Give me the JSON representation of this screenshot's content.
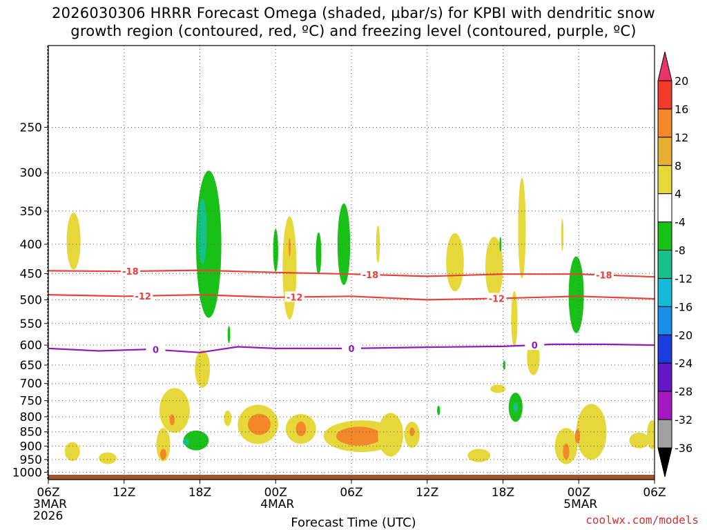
{
  "title_line1": "2026030306 HRRR Forecast Omega (shaded, µbar/s) for KPBI with dendritic snow",
  "title_line2": "growth region (contoured, red, ºC) and freezing level (contoured, purple, ºC)",
  "xlabel": "Forecast Time (UTC)",
  "site": "coolwx.com/models",
  "chart_data": {
    "type": "area",
    "x_range_hours": [
      0,
      48
    ],
    "y_range_hpa": [
      1030,
      180
    ],
    "y_ticks": [
      250,
      300,
      350,
      400,
      450,
      500,
      550,
      600,
      650,
      700,
      750,
      800,
      850,
      900,
      950,
      1000
    ],
    "x_ticks": [
      {
        "h": 0,
        "lines": [
          "06Z",
          "3MAR",
          "2026"
        ]
      },
      {
        "h": 6,
        "lines": [
          "12Z"
        ]
      },
      {
        "h": 12,
        "lines": [
          "18Z"
        ]
      },
      {
        "h": 18,
        "lines": [
          "00Z",
          "4MAR"
        ]
      },
      {
        "h": 24,
        "lines": [
          "06Z"
        ]
      },
      {
        "h": 30,
        "lines": [
          "12Z"
        ]
      },
      {
        "h": 36,
        "lines": [
          "18Z"
        ]
      },
      {
        "h": 42,
        "lines": [
          "00Z",
          "5MAR"
        ]
      },
      {
        "h": 48,
        "lines": [
          "06Z"
        ]
      }
    ],
    "colorbar": {
      "labels": [
        "20",
        "16",
        "12",
        "8",
        "4",
        "-4",
        "-8",
        "-12",
        "-16",
        "-20",
        "-24",
        "-28",
        "-32",
        "-36"
      ],
      "colors": [
        "#e8336b",
        "#f23a2a",
        "#f2882a",
        "#e8b032",
        "#e6d83a",
        "#ffffff",
        "#18c018",
        "#18c08a",
        "#18b8d8",
        "#1a8ee8",
        "#1c3ce0",
        "#6418c8",
        "#a418c0",
        "#a0a0a0",
        "#000000"
      ]
    },
    "contours": [
      {
        "name": "dendritic -18C",
        "color": "#e8403a",
        "label": "-18",
        "points": [
          [
            0,
            445
          ],
          [
            6,
            446
          ],
          [
            12,
            444
          ],
          [
            18,
            448
          ],
          [
            24,
            451
          ],
          [
            30,
            455
          ],
          [
            36,
            451
          ],
          [
            42,
            451
          ],
          [
            48,
            456
          ]
        ],
        "label_hours": [
          6.5,
          25.5,
          44
        ]
      },
      {
        "name": "dendritic -12C",
        "color": "#e8403a",
        "label": "-12",
        "points": [
          [
            0,
            490
          ],
          [
            6,
            493
          ],
          [
            12,
            490
          ],
          [
            18,
            495
          ],
          [
            24,
            493
          ],
          [
            30,
            500
          ],
          [
            36,
            497
          ],
          [
            42,
            493
          ],
          [
            48,
            498
          ]
        ],
        "label_hours": [
          7.5,
          19.5,
          35.5
        ]
      },
      {
        "name": "freezing level 0C",
        "color": "#9018c0",
        "label": "0",
        "points": [
          [
            0,
            608
          ],
          [
            4,
            614
          ],
          [
            8,
            610
          ],
          [
            12,
            618
          ],
          [
            15,
            604
          ],
          [
            18,
            608
          ],
          [
            24,
            608
          ],
          [
            30,
            605
          ],
          [
            36,
            603
          ],
          [
            40,
            598
          ],
          [
            44,
            598
          ],
          [
            48,
            600
          ]
        ],
        "label_hours": [
          8.5,
          24,
          38.5
        ]
      }
    ],
    "omega_regions": [
      {
        "color": "#e6d83a",
        "center": [
          2.0,
          395
        ],
        "radii": [
          0.55,
          45
        ]
      },
      {
        "color": "#e6d83a",
        "center": [
          1.9,
          920
        ],
        "radii": [
          0.6,
          35
        ]
      },
      {
        "color": "#e6d83a",
        "center": [
          4.7,
          945
        ],
        "radii": [
          0.7,
          22
        ]
      },
      {
        "color": "#e6d83a",
        "center": [
          9.1,
          895
        ],
        "radii": [
          0.55,
          60
        ]
      },
      {
        "color": "#f2882a",
        "center": [
          9.1,
          930
        ],
        "radii": [
          0.25,
          20
        ]
      },
      {
        "color": "#e6d83a",
        "center": [
          10.0,
          780
        ],
        "radii": [
          1.2,
          70
        ]
      },
      {
        "color": "#e6d83a",
        "center": [
          12.2,
          660
        ],
        "radii": [
          0.6,
          50
        ]
      },
      {
        "color": "#f2882a",
        "center": [
          9.8,
          810
        ],
        "radii": [
          0.2,
          18
        ]
      },
      {
        "color": "#18c018",
        "center": [
          12.7,
          400
        ],
        "radii": [
          1.0,
          115
        ]
      },
      {
        "color": "#18c08a",
        "center": [
          12.2,
          380
        ],
        "radii": [
          0.35,
          50
        ]
      },
      {
        "color": "#18c018",
        "center": [
          11.7,
          880
        ],
        "radii": [
          1.0,
          35
        ]
      },
      {
        "color": "#18c08a",
        "center": [
          10.9,
          885
        ],
        "radii": [
          0.25,
          12
        ]
      },
      {
        "color": "#e6d83a",
        "center": [
          14.2,
          805
        ],
        "radii": [
          0.3,
          25
        ]
      },
      {
        "color": "#e6d83a",
        "center": [
          16.6,
          825
        ],
        "radii": [
          1.6,
          65
        ]
      },
      {
        "color": "#f2882a",
        "center": [
          16.7,
          825
        ],
        "radii": [
          0.9,
          35
        ]
      },
      {
        "color": "#e6d83a",
        "center": [
          20.0,
          840
        ],
        "radii": [
          1.2,
          50
        ]
      },
      {
        "color": "#f2882a",
        "center": [
          20.0,
          840
        ],
        "radii": [
          0.4,
          25
        ]
      },
      {
        "color": "#e6d83a",
        "center": [
          19.1,
          440
        ],
        "radii": [
          0.55,
          90
        ]
      },
      {
        "color": "#f2882a",
        "center": [
          19.1,
          405
        ],
        "radii": [
          0.08,
          15
        ]
      },
      {
        "color": "#18c018",
        "center": [
          18.0,
          410
        ],
        "radii": [
          0.2,
          35
        ]
      },
      {
        "color": "#18c018",
        "center": [
          14.3,
          575
        ],
        "radii": [
          0.1,
          20
        ]
      },
      {
        "color": "#18c018",
        "center": [
          21.4,
          415
        ],
        "radii": [
          0.22,
          35
        ]
      },
      {
        "color": "#18c018",
        "center": [
          23.4,
          400
        ],
        "radii": [
          0.5,
          65
        ]
      },
      {
        "color": "#e6d83a",
        "center": [
          24.8,
          865
        ],
        "radii": [
          3.0,
          55
        ]
      },
      {
        "color": "#f2882a",
        "center": [
          24.6,
          865
        ],
        "radii": [
          1.8,
          33
        ]
      },
      {
        "color": "#f2882a",
        "center": [
          27.2,
          880
        ],
        "radii": [
          0.5,
          38
        ]
      },
      {
        "color": "#f23a2a",
        "center": [
          27.2,
          895
        ],
        "radii": [
          0.3,
          20
        ]
      },
      {
        "color": "#e6d83a",
        "center": [
          27.1,
          860
        ],
        "radii": [
          1.0,
          75
        ]
      },
      {
        "color": "#e6d83a",
        "center": [
          28.8,
          860
        ],
        "radii": [
          0.6,
          45
        ]
      },
      {
        "color": "#f2882a",
        "center": [
          28.8,
          850
        ],
        "radii": [
          0.2,
          15
        ]
      },
      {
        "color": "#e6d83a",
        "center": [
          26.1,
          400
        ],
        "radii": [
          0.15,
          30
        ]
      },
      {
        "color": "#18c018",
        "center": [
          30.9,
          780
        ],
        "radii": [
          0.12,
          15
        ]
      },
      {
        "color": "#e6d83a",
        "center": [
          32.2,
          430
        ],
        "radii": [
          0.7,
          50
        ]
      },
      {
        "color": "#e6d83a",
        "center": [
          34.1,
          935
        ],
        "radii": [
          0.9,
          25
        ]
      },
      {
        "color": "#e6d83a",
        "center": [
          35.3,
          440
        ],
        "radii": [
          0.7,
          55
        ]
      },
      {
        "color": "#e6d83a",
        "center": [
          35.6,
          715
        ],
        "radii": [
          0.6,
          12
        ]
      },
      {
        "color": "#18c018",
        "center": [
          36.1,
          650
        ],
        "radii": [
          0.1,
          12
        ]
      },
      {
        "color": "#18c018",
        "center": [
          35.8,
          400
        ],
        "radii": [
          0.08,
          12
        ]
      },
      {
        "color": "#e6d83a",
        "center": [
          36.9,
          540
        ],
        "radii": [
          0.25,
          60
        ]
      },
      {
        "color": "#18c018",
        "center": [
          37.0,
          770
        ],
        "radii": [
          0.55,
          45
        ]
      },
      {
        "color": "#18c08a",
        "center": [
          37.0,
          770
        ],
        "radii": [
          0.2,
          15
        ]
      },
      {
        "color": "#e6d83a",
        "center": [
          37.5,
          375
        ],
        "radii": [
          0.3,
          75
        ]
      },
      {
        "color": "#e6d83a",
        "center": [
          38.4,
          630
        ],
        "radii": [
          0.5,
          45
        ]
      },
      {
        "color": "#e6d83a",
        "center": [
          40.7,
          385
        ],
        "radii": [
          0.1,
          25
        ]
      },
      {
        "color": "#e6d83a",
        "center": [
          41.0,
          900
        ],
        "radii": [
          0.9,
          65
        ]
      },
      {
        "color": "#f2882a",
        "center": [
          41.0,
          920
        ],
        "radii": [
          0.25,
          30
        ]
      },
      {
        "color": "#e6d83a",
        "center": [
          43.0,
          850
        ],
        "radii": [
          1.2,
          95
        ]
      },
      {
        "color": "#f2882a",
        "center": [
          41.9,
          865
        ],
        "radii": [
          0.2,
          25
        ]
      },
      {
        "color": "#18c018",
        "center": [
          41.8,
          490
        ],
        "radii": [
          0.6,
          75
        ]
      },
      {
        "color": "#e6d83a",
        "center": [
          46.8,
          880
        ],
        "radii": [
          0.8,
          28
        ]
      },
      {
        "color": "#e6d83a",
        "center": [
          47.8,
          860
        ],
        "radii": [
          0.4,
          50
        ]
      }
    ]
  }
}
